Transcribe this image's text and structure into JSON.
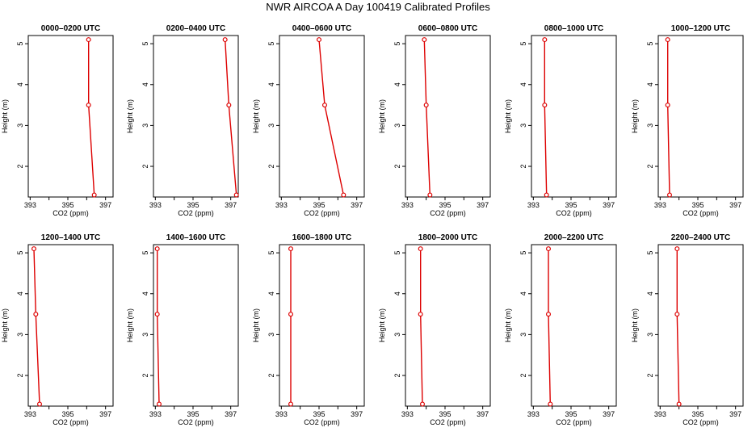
{
  "title": "NWR AIRCOA A  Day 100419  Calibrated Profiles",
  "colors": {
    "series": "#dd0000",
    "axis": "#000000"
  },
  "chart_data": {
    "type": "line",
    "xlabel": "CO2 (ppm)",
    "ylabel": "Height (m)",
    "xlim": [
      392.9,
      397.4
    ],
    "ylim": [
      1.25,
      5.2
    ],
    "xticks": [
      393,
      394,
      395,
      396,
      397
    ],
    "xtick_labels": [
      "393",
      "",
      "395",
      "",
      "397"
    ],
    "yticks": [
      2,
      3,
      4,
      5
    ],
    "ytick_labels": [
      "2",
      "3",
      "4",
      "5"
    ],
    "heights": [
      5.1,
      3.5,
      1.3
    ],
    "panels": [
      {
        "title": "0000–0200 UTC",
        "co2": [
          396.1,
          396.1,
          396.4
        ]
      },
      {
        "title": "0200–0400 UTC",
        "co2": [
          396.7,
          396.9,
          397.3
        ]
      },
      {
        "title": "0400–0600 UTC",
        "co2": [
          395.0,
          395.3,
          396.3
        ]
      },
      {
        "title": "0600–0800 UTC",
        "co2": [
          393.9,
          394.0,
          394.2
        ]
      },
      {
        "title": "0800–1000 UTC",
        "co2": [
          393.6,
          393.6,
          393.7
        ]
      },
      {
        "title": "1000–1200 UTC",
        "co2": [
          393.4,
          393.4,
          393.5
        ]
      },
      {
        "title": "1200–1400 UTC",
        "co2": [
          393.2,
          393.3,
          393.5
        ]
      },
      {
        "title": "1400–1600 UTC",
        "co2": [
          393.1,
          393.1,
          393.2
        ]
      },
      {
        "title": "1600–1800 UTC",
        "co2": [
          393.5,
          393.5,
          393.5
        ]
      },
      {
        "title": "1800–2000 UTC",
        "co2": [
          393.7,
          393.7,
          393.8
        ]
      },
      {
        "title": "2000–2200 UTC",
        "co2": [
          393.8,
          393.8,
          393.9
        ]
      },
      {
        "title": "2200–2400 UTC",
        "co2": [
          393.9,
          393.9,
          394.0
        ]
      }
    ]
  }
}
